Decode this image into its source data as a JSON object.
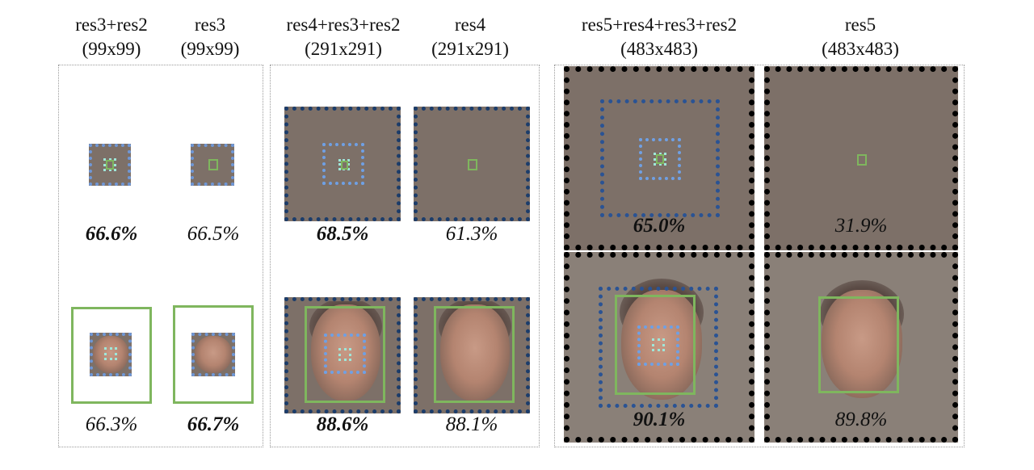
{
  "columns": [
    {
      "name": "res3+res2",
      "size": "(99x99)",
      "top_value": "66.6%",
      "bottom_value": "66.3%"
    },
    {
      "name": "res3",
      "size": "(99x99)",
      "top_value": "66.5%",
      "bottom_value": "66.7%"
    },
    {
      "name": "res4+res3+res2",
      "size": "(291x291)",
      "top_value": "68.5%",
      "bottom_value": "88.6%"
    },
    {
      "name": "res4",
      "size": "(291x291)",
      "top_value": "61.3%",
      "bottom_value": "88.1%"
    },
    {
      "name": "res5+res4+res3+res2",
      "size": "(483x483)",
      "top_value": "65.0%",
      "bottom_value": "90.1%"
    },
    {
      "name": "res5",
      "size": "(483x483)",
      "top_value": "31.9%",
      "bottom_value": "89.8%"
    }
  ],
  "colors": {
    "green_box": "#7fb65e",
    "light_blue_box": "#6fa0e4",
    "dark_blue_box": "#2a5394",
    "cyan_box": "#9fe7d9",
    "tile_background": "#7d7068"
  }
}
